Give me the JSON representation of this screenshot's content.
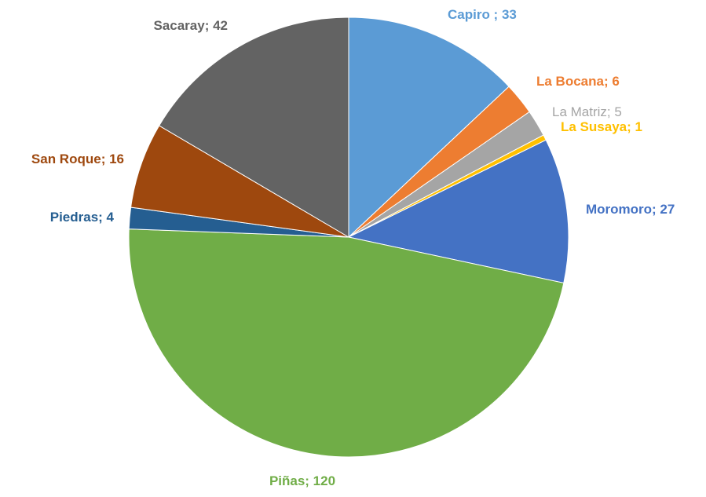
{
  "chart_data": {
    "type": "pie",
    "title": "",
    "slices": [
      {
        "label": "Capiro ; 33",
        "name": "Capiro",
        "value": 33,
        "color": "#5B9BD5",
        "label_color": "#5B9BD5",
        "weight": "bold"
      },
      {
        "label": "La Bocana; 6",
        "name": "La Bocana",
        "value": 6,
        "color": "#ED7D31",
        "label_color": "#ED7D31",
        "weight": "bold"
      },
      {
        "label": "La Matriz; 5",
        "name": "La Matriz",
        "value": 5,
        "color": "#A5A5A5",
        "label_color": "#A5A5A5",
        "weight": "normal"
      },
      {
        "label": "La Susaya; 1",
        "name": "La Susaya",
        "value": 1,
        "color": "#FFC000",
        "label_color": "#FFC000",
        "weight": "bold"
      },
      {
        "label": "Moromoro; 27",
        "name": "Moromoro",
        "value": 27,
        "color": "#4472C4",
        "label_color": "#4472C4",
        "weight": "bold"
      },
      {
        "label": "Piñas; 120",
        "name": "Piñas",
        "value": 120,
        "color": "#70AD47",
        "label_color": "#70AD47",
        "weight": "bold"
      },
      {
        "label": "Piedras; 4",
        "name": "Piedras",
        "value": 4,
        "color": "#255E91",
        "label_color": "#255E91",
        "weight": "bold"
      },
      {
        "label": "San Roque; 16",
        "name": "San Roque",
        "value": 16,
        "color": "#9E480E",
        "label_color": "#9E480E",
        "weight": "bold"
      },
      {
        "label": "Sacaray; 42",
        "name": "Sacaray",
        "value": 42,
        "color": "#636363",
        "label_color": "#636363",
        "weight": "bold"
      }
    ]
  }
}
